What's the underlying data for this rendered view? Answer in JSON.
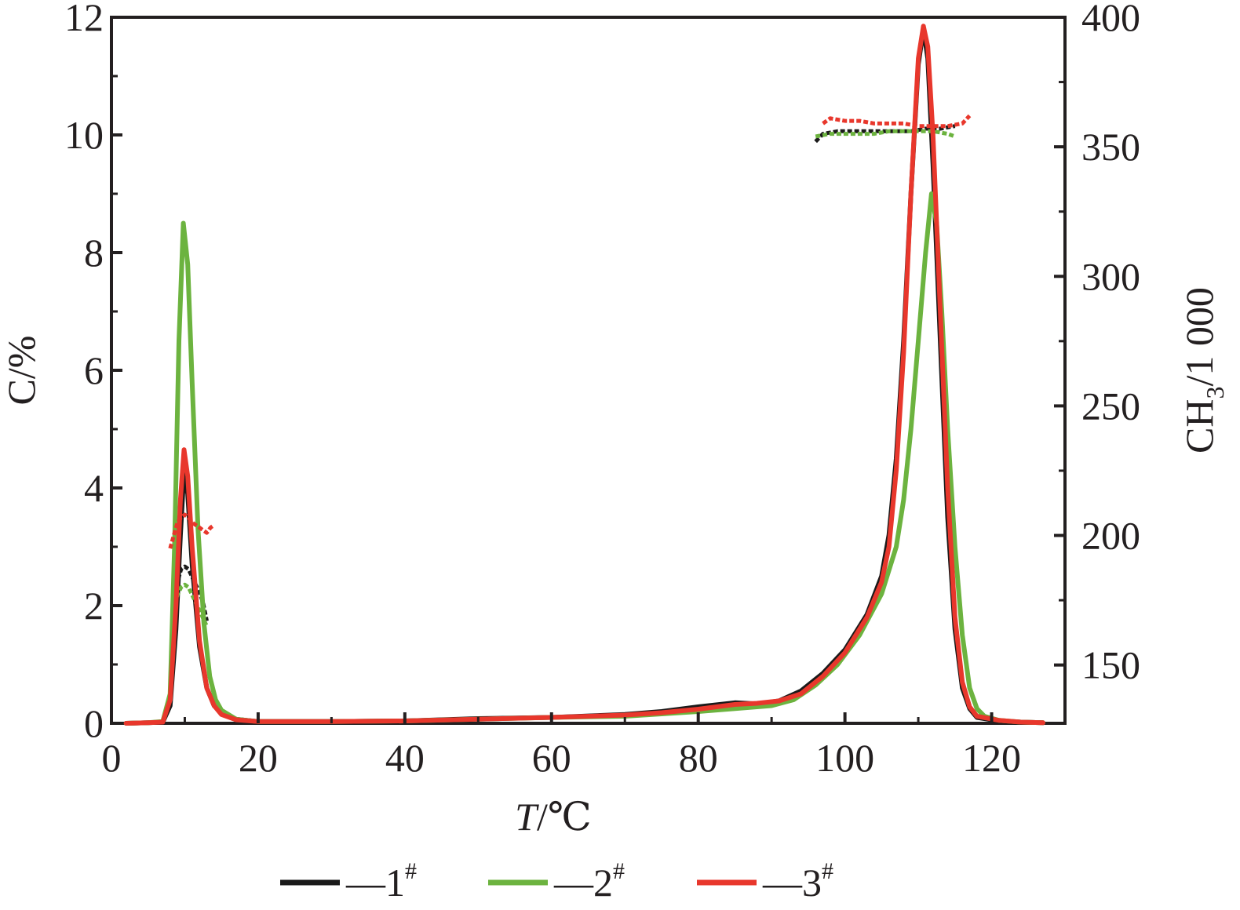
{
  "chart_data": {
    "type": "line",
    "xlabel_italic": "T",
    "xlabel_unit": "/℃",
    "ylabel": "C/%",
    "y2label_main": "CH",
    "y2label_sub": "3",
    "y2label_tail": "/1 000",
    "xlim": [
      0,
      130
    ],
    "ylim": [
      0,
      12
    ],
    "y2lim": [
      127.5,
      400
    ],
    "xticks": [
      "0",
      "20",
      "40",
      "60",
      "80",
      "100",
      "120"
    ],
    "xtick_values": [
      0,
      20,
      40,
      60,
      80,
      100,
      120
    ],
    "yticks": [
      "0",
      "2",
      "4",
      "6",
      "8",
      "10",
      "12"
    ],
    "ytick_values": [
      0,
      2,
      4,
      6,
      8,
      10,
      12
    ],
    "y2ticks": [
      "150",
      "200",
      "250",
      "300",
      "350",
      "400"
    ],
    "y2tick_values": [
      150,
      200,
      250,
      300,
      350,
      400
    ],
    "grid": false,
    "legend_position": "bottom-center",
    "legend_prefix": "—",
    "series": [
      {
        "name": "1",
        "sup": "#",
        "color": "#1a1a1a",
        "concentration": [
          [
            2,
            0
          ],
          [
            5,
            0.01
          ],
          [
            7,
            0.02
          ],
          [
            8,
            0.3
          ],
          [
            8.8,
            1.6
          ],
          [
            9.4,
            3.2
          ],
          [
            9.9,
            4.3
          ],
          [
            10.4,
            3.9
          ],
          [
            11,
            2.7
          ],
          [
            12,
            1.3
          ],
          [
            13,
            0.6
          ],
          [
            14,
            0.3
          ],
          [
            15,
            0.17
          ],
          [
            17,
            0.07
          ],
          [
            20,
            0.03
          ],
          [
            30,
            0.03
          ],
          [
            40,
            0.04
          ],
          [
            50,
            0.08
          ],
          [
            60,
            0.1
          ],
          [
            70,
            0.15
          ],
          [
            75,
            0.2
          ],
          [
            80,
            0.28
          ],
          [
            85,
            0.35
          ],
          [
            88,
            0.33
          ],
          [
            91,
            0.38
          ],
          [
            94,
            0.55
          ],
          [
            97,
            0.85
          ],
          [
            100,
            1.25
          ],
          [
            103,
            1.85
          ],
          [
            105,
            2.5
          ],
          [
            106,
            3.2
          ],
          [
            107,
            4.5
          ],
          [
            108,
            6.5
          ],
          [
            109,
            9.0
          ],
          [
            110,
            11.2
          ],
          [
            110.7,
            11.8
          ],
          [
            111.3,
            11.3
          ],
          [
            112,
            9.5
          ],
          [
            113,
            6.5
          ],
          [
            114,
            3.5
          ],
          [
            115,
            1.6
          ],
          [
            116,
            0.6
          ],
          [
            117,
            0.25
          ],
          [
            118,
            0.1
          ],
          [
            121,
            0.04
          ],
          [
            124,
            0.02
          ],
          [
            127,
            0.01
          ]
        ],
        "ch3": [
          [
            8.3,
            167
          ],
          [
            9,
            182
          ],
          [
            9.5,
            187
          ],
          [
            10,
            188
          ],
          [
            10.5,
            187
          ],
          [
            11,
            184
          ],
          [
            11.5,
            181
          ],
          [
            12,
            178
          ],
          [
            12.5,
            174
          ],
          [
            13,
            167
          ],
          [
            96,
            352
          ],
          [
            97,
            355
          ],
          [
            99,
            356
          ],
          [
            101,
            356
          ],
          [
            103,
            356
          ],
          [
            105,
            356
          ],
          [
            107,
            356
          ],
          [
            109,
            356
          ],
          [
            111,
            357
          ],
          [
            113,
            357
          ],
          [
            115,
            358
          ]
        ]
      },
      {
        "name": "2",
        "sup": "#",
        "color": "#6cb33f",
        "concentration": [
          [
            2,
            0
          ],
          [
            5,
            0.01
          ],
          [
            7,
            0.03
          ],
          [
            8,
            0.5
          ],
          [
            8.6,
            3.0
          ],
          [
            9.2,
            6.5
          ],
          [
            9.8,
            8.5
          ],
          [
            10.4,
            7.8
          ],
          [
            11,
            5.8
          ],
          [
            11.8,
            3.3
          ],
          [
            12.6,
            1.7
          ],
          [
            13.4,
            0.8
          ],
          [
            14.2,
            0.4
          ],
          [
            15,
            0.22
          ],
          [
            17,
            0.07
          ],
          [
            20,
            0.03
          ],
          [
            30,
            0.03
          ],
          [
            40,
            0.04
          ],
          [
            50,
            0.07
          ],
          [
            60,
            0.1
          ],
          [
            70,
            0.12
          ],
          [
            75,
            0.16
          ],
          [
            80,
            0.2
          ],
          [
            85,
            0.25
          ],
          [
            90,
            0.3
          ],
          [
            93,
            0.4
          ],
          [
            96,
            0.65
          ],
          [
            99,
            1.0
          ],
          [
            102,
            1.5
          ],
          [
            105,
            2.2
          ],
          [
            107,
            3.0
          ],
          [
            108,
            3.8
          ],
          [
            109,
            5.0
          ],
          [
            110,
            6.5
          ],
          [
            111,
            8.0
          ],
          [
            111.8,
            9.0
          ],
          [
            112.5,
            8.5
          ],
          [
            113.2,
            7.0
          ],
          [
            114,
            5.0
          ],
          [
            115,
            3.0
          ],
          [
            116,
            1.5
          ],
          [
            117,
            0.6
          ],
          [
            118,
            0.25
          ],
          [
            119,
            0.12
          ],
          [
            121,
            0.05
          ],
          [
            124,
            0.02
          ],
          [
            127,
            0.01
          ]
        ],
        "ch3": [
          [
            8.5,
            171
          ],
          [
            9,
            177
          ],
          [
            9.5,
            180
          ],
          [
            10,
            181
          ],
          [
            10.5,
            180
          ],
          [
            11,
            177
          ],
          [
            11.5,
            174
          ],
          [
            12,
            171
          ],
          [
            12.5,
            168
          ],
          [
            13,
            165
          ],
          [
            96,
            354
          ],
          [
            98,
            355
          ],
          [
            100,
            355
          ],
          [
            102,
            355
          ],
          [
            104,
            355
          ],
          [
            106,
            356
          ],
          [
            108,
            356
          ],
          [
            110,
            356
          ],
          [
            112,
            356
          ],
          [
            114,
            355
          ],
          [
            115,
            354
          ]
        ]
      },
      {
        "name": "3",
        "sup": "#",
        "color": "#e8372c",
        "concentration": [
          [
            2,
            0
          ],
          [
            5,
            0.01
          ],
          [
            7,
            0.02
          ],
          [
            8,
            0.4
          ],
          [
            8.8,
            2.0
          ],
          [
            9.4,
            3.8
          ],
          [
            9.9,
            4.65
          ],
          [
            10.4,
            4.2
          ],
          [
            11,
            3.0
          ],
          [
            12,
            1.4
          ],
          [
            13,
            0.6
          ],
          [
            14,
            0.3
          ],
          [
            15,
            0.15
          ],
          [
            17,
            0.06
          ],
          [
            20,
            0.03
          ],
          [
            30,
            0.03
          ],
          [
            40,
            0.04
          ],
          [
            50,
            0.07
          ],
          [
            60,
            0.1
          ],
          [
            70,
            0.14
          ],
          [
            75,
            0.18
          ],
          [
            80,
            0.24
          ],
          [
            85,
            0.32
          ],
          [
            88,
            0.34
          ],
          [
            91,
            0.38
          ],
          [
            94,
            0.5
          ],
          [
            97,
            0.8
          ],
          [
            100,
            1.2
          ],
          [
            103,
            1.8
          ],
          [
            105,
            2.4
          ],
          [
            106,
            3.0
          ],
          [
            107,
            4.3
          ],
          [
            108,
            6.3
          ],
          [
            109,
            9.0
          ],
          [
            110,
            11.3
          ],
          [
            110.7,
            11.85
          ],
          [
            111.3,
            11.5
          ],
          [
            112,
            10.0
          ],
          [
            113,
            7.0
          ],
          [
            114,
            4.0
          ],
          [
            115,
            1.8
          ],
          [
            116,
            0.7
          ],
          [
            117,
            0.28
          ],
          [
            118,
            0.12
          ],
          [
            121,
            0.05
          ],
          [
            124,
            0.02
          ],
          [
            127,
            0.01
          ]
        ],
        "ch3": [
          [
            8,
            195
          ],
          [
            8.5,
            200
          ],
          [
            9,
            205
          ],
          [
            9.5,
            207
          ],
          [
            10,
            208
          ],
          [
            10.5,
            207
          ],
          [
            11,
            205
          ],
          [
            11.5,
            204
          ],
          [
            12,
            203
          ],
          [
            12.5,
            202
          ],
          [
            13,
            201
          ],
          [
            13.5,
            203
          ],
          [
            14,
            204
          ],
          [
            97,
            359
          ],
          [
            98,
            361
          ],
          [
            100,
            360
          ],
          [
            102,
            360
          ],
          [
            104,
            359
          ],
          [
            106,
            359
          ],
          [
            108,
            359
          ],
          [
            110,
            358
          ],
          [
            112,
            358
          ],
          [
            114,
            358
          ],
          [
            116,
            359
          ],
          [
            117,
            362
          ]
        ]
      }
    ]
  }
}
